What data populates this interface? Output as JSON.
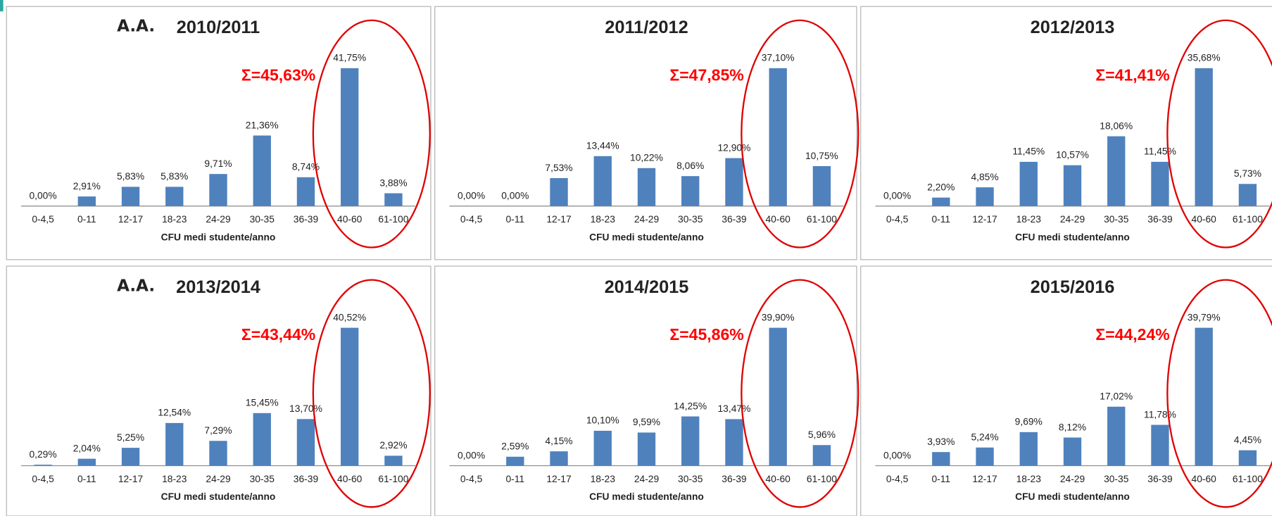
{
  "chart_data": [
    {
      "type": "bar",
      "label": "A.A.",
      "title": "2010/2011",
      "annotation": "Σ=45,63%",
      "x_label": "CFU medi studente/anno",
      "color": "#4f81bd",
      "categories": [
        "0-4,5",
        "0-11",
        "12-17",
        "18-23",
        "24-29",
        "30-35",
        "36-39",
        "40-60",
        "61-100"
      ],
      "values": [
        0,
        2.91,
        5.83,
        5.83,
        9.71,
        21.36,
        8.74,
        41.75,
        3.88
      ],
      "value_labels": [
        "0,00%",
        "2,91%",
        "5,83%",
        "5,83%",
        "9,71%",
        "21,36%",
        "8,74%",
        "41,75%",
        "3,88%"
      ]
    },
    {
      "type": "bar",
      "title": "2011/2012",
      "annotation": "Σ=47,85%",
      "x_label": "CFU medi studente/anno",
      "color": "#4f81bd",
      "categories": [
        "0-4,5",
        "0-11",
        "12-17",
        "18-23",
        "24-29",
        "30-35",
        "36-39",
        "40-60",
        "61-100"
      ],
      "values": [
        0,
        0,
        7.53,
        13.44,
        10.22,
        8.06,
        12.9,
        37.1,
        10.75
      ],
      "value_labels": [
        "0,00%",
        "0,00%",
        "7,53%",
        "13,44%",
        "10,22%",
        "8,06%",
        "12,90%",
        "37,10%",
        "10,75%"
      ]
    },
    {
      "type": "bar",
      "title": "2012/2013",
      "annotation": "Σ=41,41%",
      "x_label": "CFU medi studente/anno",
      "color": "#4f81bd",
      "categories": [
        "0-4,5",
        "0-11",
        "12-17",
        "18-23",
        "24-29",
        "30-35",
        "36-39",
        "40-60",
        "61-100"
      ],
      "values": [
        0,
        2.2,
        4.85,
        11.45,
        10.57,
        18.06,
        11.45,
        35.68,
        5.73
      ],
      "value_labels": [
        "0,00%",
        "2,20%",
        "4,85%",
        "11,45%",
        "10,57%",
        "18,06%",
        "11,45%",
        "35,68%",
        "5,73%"
      ]
    },
    {
      "type": "bar",
      "label": "A.A.",
      "title": "2013/2014",
      "annotation": "Σ=43,44%",
      "x_label": "CFU medi studente/anno",
      "color": "#4f81bd",
      "categories": [
        "0-4,5",
        "0-11",
        "12-17",
        "18-23",
        "24-29",
        "30-35",
        "36-39",
        "40-60",
        "61-100"
      ],
      "values": [
        0.29,
        2.04,
        5.25,
        12.54,
        7.29,
        15.45,
        13.7,
        40.52,
        2.92
      ],
      "value_labels": [
        "0,29%",
        "2,04%",
        "5,25%",
        "12,54%",
        "7,29%",
        "15,45%",
        "13,70%",
        "40,52%",
        "2,92%"
      ]
    },
    {
      "type": "bar",
      "title": "2014/2015",
      "annotation": "Σ=45,86%",
      "x_label": "CFU medi studente/anno",
      "color": "#4f81bd",
      "categories": [
        "0-4,5",
        "0-11",
        "12-17",
        "18-23",
        "24-29",
        "30-35",
        "36-39",
        "40-60",
        "61-100"
      ],
      "values": [
        0,
        2.59,
        4.15,
        10.1,
        9.59,
        14.25,
        13.47,
        39.9,
        5.96
      ],
      "value_labels": [
        "0,00%",
        "2,59%",
        "4,15%",
        "10,10%",
        "9,59%",
        "14,25%",
        "13,47%",
        "39,90%",
        "5,96%"
      ]
    },
    {
      "type": "bar",
      "title": "2015/2016",
      "annotation": "Σ=44,24%",
      "x_label": "CFU medi studente/anno",
      "color": "#4f81bd",
      "categories": [
        "0-4,5",
        "0-11",
        "12-17",
        "18-23",
        "24-29",
        "30-35",
        "36-39",
        "40-60",
        "61-100"
      ],
      "values": [
        0,
        3.93,
        5.24,
        9.69,
        8.12,
        17.02,
        11.78,
        39.79,
        4.45
      ],
      "value_labels": [
        "0,00%",
        "3,93%",
        "5,24%",
        "9,69%",
        "8,12%",
        "17,02%",
        "11,78%",
        "39,79%",
        "4,45%"
      ]
    }
  ]
}
